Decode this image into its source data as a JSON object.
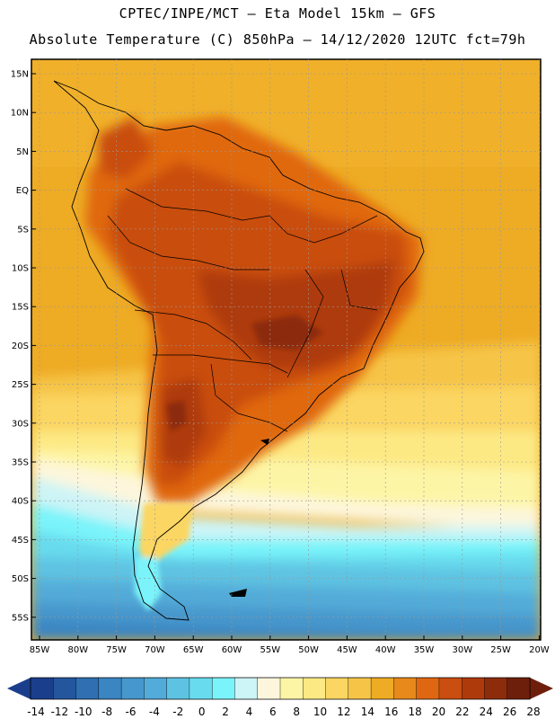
{
  "header": {
    "line1": "CPTEC/INPE/MCT –  Eta Model 15km – GFS",
    "line2": "Absolute Temperature (C) 850hPa – 14/12/2020 12UTC fct=79h"
  },
  "map": {
    "lat_labels": [
      "15N",
      "10N",
      "5N",
      "EQ",
      "5S",
      "10S",
      "15S",
      "20S",
      "25S",
      "30S",
      "35S",
      "40S",
      "45S",
      "50S",
      "55S"
    ],
    "lon_labels": [
      "85W",
      "80W",
      "75W",
      "70W",
      "65W",
      "60W",
      "55W",
      "50W",
      "45W",
      "40W",
      "35W",
      "30W",
      "25W",
      "20W"
    ]
  },
  "colorbar": {
    "labels": [
      "-14",
      "-12",
      "-10",
      "-8",
      "-6",
      "-4",
      "-2",
      "0",
      "2",
      "4",
      "6",
      "8",
      "10",
      "12",
      "14",
      "16",
      "18",
      "20",
      "22",
      "24",
      "26",
      "28"
    ],
    "colors": [
      "#1b3e8c",
      "#24569e",
      "#2f6fb2",
      "#3a85c2",
      "#4697cc",
      "#52abd8",
      "#5ec3e2",
      "#68dbee",
      "#7af4fa",
      "#cdf4f6",
      "#fdf6dc",
      "#fdf5a6",
      "#fde984",
      "#fbd662",
      "#f6c446",
      "#eeab24",
      "#e7891b",
      "#e06711",
      "#c94e10",
      "#ae3a0c",
      "#8c2c0b",
      "#6e1f0c"
    ],
    "arrow_left_color": "#1b3e8c",
    "arrow_right_color": "#6e1f0c"
  }
}
